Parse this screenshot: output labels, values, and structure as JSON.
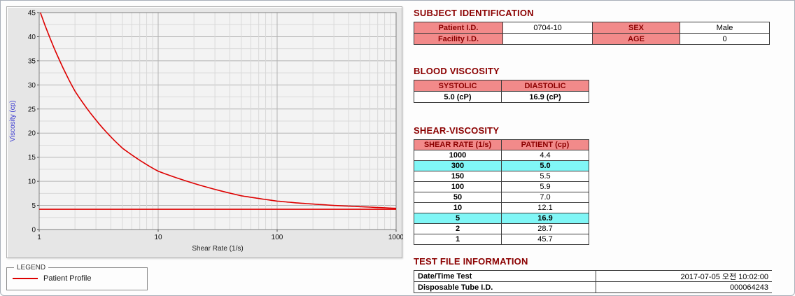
{
  "subject_identification": {
    "title": "SUBJECT IDENTIFICATION",
    "patient_id_label": "Patient I.D.",
    "patient_id": "0704-10",
    "sex_label": "SEX",
    "sex": "Male",
    "facility_id_label": "Facility I.D.",
    "facility_id": "",
    "age_label": "AGE",
    "age": "0"
  },
  "blood_viscosity": {
    "title": "BLOOD VISCOSITY",
    "systolic_label": "SYSTOLIC",
    "diastolic_label": "DIASTOLIC",
    "systolic_value": "5.0 (cP)",
    "diastolic_value": "16.9 (cP)"
  },
  "shear_viscosity": {
    "title": "SHEAR-VISCOSITY",
    "col_rate": "SHEAR RATE (1/s)",
    "col_patient": "PATIENT (cp)",
    "rows": [
      {
        "rate": "1000",
        "value": "4.4",
        "highlight": false
      },
      {
        "rate": "300",
        "value": "5.0",
        "highlight": true
      },
      {
        "rate": "150",
        "value": "5.5",
        "highlight": false
      },
      {
        "rate": "100",
        "value": "5.9",
        "highlight": false
      },
      {
        "rate": "50",
        "value": "7.0",
        "highlight": false
      },
      {
        "rate": "10",
        "value": "12.1",
        "highlight": false
      },
      {
        "rate": "5",
        "value": "16.9",
        "highlight": true
      },
      {
        "rate": "2",
        "value": "28.7",
        "highlight": false
      },
      {
        "rate": "1",
        "value": "45.7",
        "highlight": false
      }
    ]
  },
  "test_file_information": {
    "title": "TEST FILE INFORMATION",
    "datetime_label": "Date/Time Test",
    "datetime_value": "2017-07-05 오전 10:02:00",
    "tube_label": "Disposable Tube I.D.",
    "tube_value": "000064243"
  },
  "legend": {
    "title": "LEGEND",
    "series_label": "Patient Profile"
  },
  "colors": {
    "section_title": "#8b0000",
    "table_header_bg": "#f28a8a",
    "table_header_text": "#8b0000",
    "highlight_bg": "#80f6f6",
    "series_line": "#dd0000",
    "ylabel_text": "#3b3bd1"
  },
  "chart_data": {
    "type": "line",
    "title": "",
    "xlabel": "Shear Rate (1/s)",
    "ylabel": "Viscosity (cp)",
    "x_scale": "log",
    "xlim": [
      1,
      1000
    ],
    "ylim": [
      0,
      45
    ],
    "y_tick_step": 5,
    "x_ticks": [
      1,
      10,
      100,
      1000
    ],
    "grid": true,
    "legend_position": "below-left",
    "series": [
      {
        "name": "Patient Profile",
        "color": "#dd0000",
        "x": [
          1,
          2,
          5,
          10,
          50,
          100,
          150,
          300,
          1000
        ],
        "y": [
          45.7,
          28.7,
          16.9,
          12.1,
          7.0,
          5.9,
          5.5,
          5.0,
          4.4
        ]
      },
      {
        "name": "horizontal-reference-line",
        "color": "#dd0000",
        "x": [
          1,
          1000
        ],
        "y": [
          4.2,
          4.2
        ]
      }
    ]
  }
}
